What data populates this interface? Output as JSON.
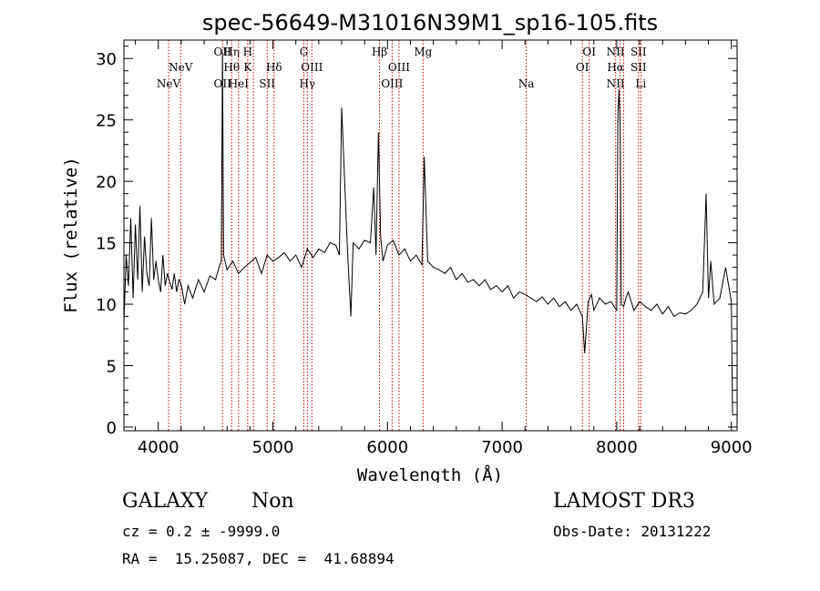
{
  "chart_data": {
    "type": "line",
    "title": "spec-56649-M31016N39M1_sp16-105.fits",
    "xlabel": "Wavelength (Å)",
    "ylabel": "Flux (relative)",
    "xlim": [
      3700,
      9050
    ],
    "ylim": [
      -0.3,
      31.5
    ],
    "xticks": [
      4000,
      5000,
      6000,
      7000,
      8000,
      9000
    ],
    "yticks": [
      0,
      5,
      10,
      15,
      20,
      25,
      30
    ],
    "grid": false,
    "series": [
      {
        "name": "flux",
        "x": [
          3700,
          3720,
          3740,
          3760,
          3780,
          3800,
          3820,
          3840,
          3860,
          3880,
          3900,
          3920,
          3940,
          3960,
          3980,
          4000,
          4020,
          4040,
          4060,
          4080,
          4100,
          4120,
          4140,
          4160,
          4180,
          4200,
          4230,
          4260,
          4300,
          4350,
          4400,
          4450,
          4500,
          4530,
          4550,
          4560,
          4570,
          4600,
          4650,
          4700,
          4750,
          4800,
          4850,
          4900,
          4950,
          5000,
          5050,
          5100,
          5150,
          5200,
          5250,
          5300,
          5350,
          5400,
          5450,
          5500,
          5550,
          5580,
          5600,
          5650,
          5680,
          5700,
          5750,
          5800,
          5850,
          5880,
          5900,
          5920,
          5940,
          5960,
          6000,
          6050,
          6100,
          6150,
          6200,
          6250,
          6300,
          6320,
          6350,
          6400,
          6450,
          6500,
          6550,
          6600,
          6650,
          6700,
          6750,
          6800,
          6850,
          6900,
          6950,
          7000,
          7050,
          7100,
          7150,
          7200,
          7250,
          7300,
          7350,
          7400,
          7450,
          7500,
          7550,
          7600,
          7650,
          7700,
          7720,
          7750,
          7780,
          7800,
          7850,
          7900,
          7950,
          8000,
          8010,
          8020,
          8030,
          8040,
          8060,
          8080,
          8100,
          8150,
          8200,
          8250,
          8300,
          8350,
          8400,
          8450,
          8500,
          8550,
          8600,
          8650,
          8700,
          8750,
          8780,
          8800,
          8820,
          8850,
          8900,
          8950,
          9000,
          9010
        ],
        "y": [
          8.5,
          14.0,
          11.5,
          17.0,
          10.5,
          16.5,
          12.0,
          18.0,
          11.0,
          15.5,
          12.5,
          11.5,
          17.0,
          12.0,
          13.5,
          12.0,
          11.0,
          14.0,
          11.5,
          12.5,
          11.8,
          11.2,
          12.5,
          11.0,
          12.0,
          11.6,
          10.0,
          11.5,
          10.5,
          12.0,
          11.0,
          12.3,
          12.0,
          13.0,
          13.5,
          30.5,
          14.0,
          12.8,
          13.5,
          12.5,
          13.0,
          13.4,
          13.8,
          12.5,
          14.0,
          13.5,
          13.8,
          14.2,
          13.5,
          14.0,
          13.0,
          14.5,
          13.8,
          14.5,
          14.2,
          15.0,
          14.8,
          14.0,
          26.0,
          14.5,
          9.0,
          15.0,
          14.5,
          15.2,
          15.0,
          19.5,
          14.0,
          24.0,
          15.5,
          13.5,
          14.8,
          15.2,
          14.0,
          14.5,
          13.5,
          14.0,
          13.2,
          22.0,
          13.5,
          13.0,
          12.8,
          12.5,
          13.0,
          12.0,
          12.5,
          11.8,
          12.0,
          11.5,
          12.0,
          11.2,
          11.5,
          11.0,
          11.5,
          10.5,
          11.0,
          10.8,
          10.5,
          10.2,
          10.6,
          10.0,
          10.5,
          9.8,
          10.2,
          9.5,
          10.0,
          9.0,
          6.0,
          10.2,
          10.8,
          9.5,
          10.5,
          10.0,
          10.2,
          9.5,
          25.5,
          27.5,
          24.5,
          10.0,
          9.8,
          10.5,
          11.0,
          9.5,
          10.2,
          9.8,
          9.5,
          10.0,
          9.2,
          9.8,
          9.0,
          9.3,
          9.2,
          9.5,
          10.0,
          11.0,
          19.0,
          10.5,
          13.5,
          10.0,
          10.5,
          13.0,
          10.2,
          1.0
        ]
      }
    ],
    "lines": [
      {
        "wl": 4090,
        "labels": [
          {
            "text": "NeV",
            "row": 3
          }
        ]
      },
      {
        "wl": 4195,
        "labels": [
          {
            "text": "NeV",
            "row": 2
          }
        ]
      },
      {
        "wl": 4560,
        "labels": [
          {
            "text": "OII",
            "row": 1
          },
          {
            "text": "OII",
            "row": 3
          }
        ]
      },
      {
        "wl": 4640,
        "labels": [
          {
            "text": "Hη",
            "row": 1
          },
          {
            "text": "Hθ",
            "row": 2
          }
        ]
      },
      {
        "wl": 4700,
        "labels": [
          {
            "text": "HeI",
            "row": 3
          }
        ]
      },
      {
        "wl": 4780,
        "labels": [
          {
            "text": "H",
            "row": 1
          },
          {
            "text": "K",
            "row": 2
          }
        ]
      },
      {
        "wl": 4830,
        "labels": []
      },
      {
        "wl": 4950,
        "labels": [
          {
            "text": "SII",
            "row": 3
          }
        ]
      },
      {
        "wl": 5010,
        "labels": [
          {
            "text": "Hδ",
            "row": 2
          }
        ]
      },
      {
        "wl": 5270,
        "labels": [
          {
            "text": "G",
            "row": 1
          }
        ]
      },
      {
        "wl": 5300,
        "labels": [
          {
            "text": "Hγ",
            "row": 3
          }
        ]
      },
      {
        "wl": 5340,
        "labels": [
          {
            "text": "OIII",
            "row": 2
          }
        ]
      },
      {
        "wl": 5930,
        "labels": [
          {
            "text": "Hβ",
            "row": 1
          }
        ]
      },
      {
        "wl": 6040,
        "labels": [
          {
            "text": "OIII",
            "row": 3
          }
        ]
      },
      {
        "wl": 6100,
        "labels": [
          {
            "text": "OIII",
            "row": 2
          }
        ]
      },
      {
        "wl": 6310,
        "labels": [
          {
            "text": "Mg",
            "row": 1
          }
        ]
      },
      {
        "wl": 7210,
        "labels": [
          {
            "text": "Na",
            "row": 3
          }
        ]
      },
      {
        "wl": 7700,
        "labels": [
          {
            "text": "OI",
            "row": 2
          }
        ]
      },
      {
        "wl": 7760,
        "labels": [
          {
            "text": "OI",
            "row": 1
          }
        ]
      },
      {
        "wl": 7990,
        "labels": [
          {
            "text": "NII",
            "row": 1
          },
          {
            "text": "Hα",
            "row": 2
          },
          {
            "text": "NII",
            "row": 3
          }
        ]
      },
      {
        "wl": 8030,
        "labels": []
      },
      {
        "wl": 8060,
        "labels": []
      },
      {
        "wl": 8190,
        "labels": [
          {
            "text": "SII",
            "row": 1
          },
          {
            "text": "SII",
            "row": 2
          }
        ]
      },
      {
        "wl": 8210,
        "labels": [
          {
            "text": "Li",
            "row": 3
          }
        ]
      }
    ]
  },
  "info": {
    "class": "GALAXY",
    "subclass": "Non",
    "survey": "LAMOST DR3",
    "cz": "cz = 0.2 ± -9999.0",
    "obs_date": "Obs-Date: 20131222",
    "radec": "RA =  15.25087, DEC =  41.68894"
  },
  "colors": {
    "line_marker": "#c00000",
    "spectrum": "#000000"
  }
}
